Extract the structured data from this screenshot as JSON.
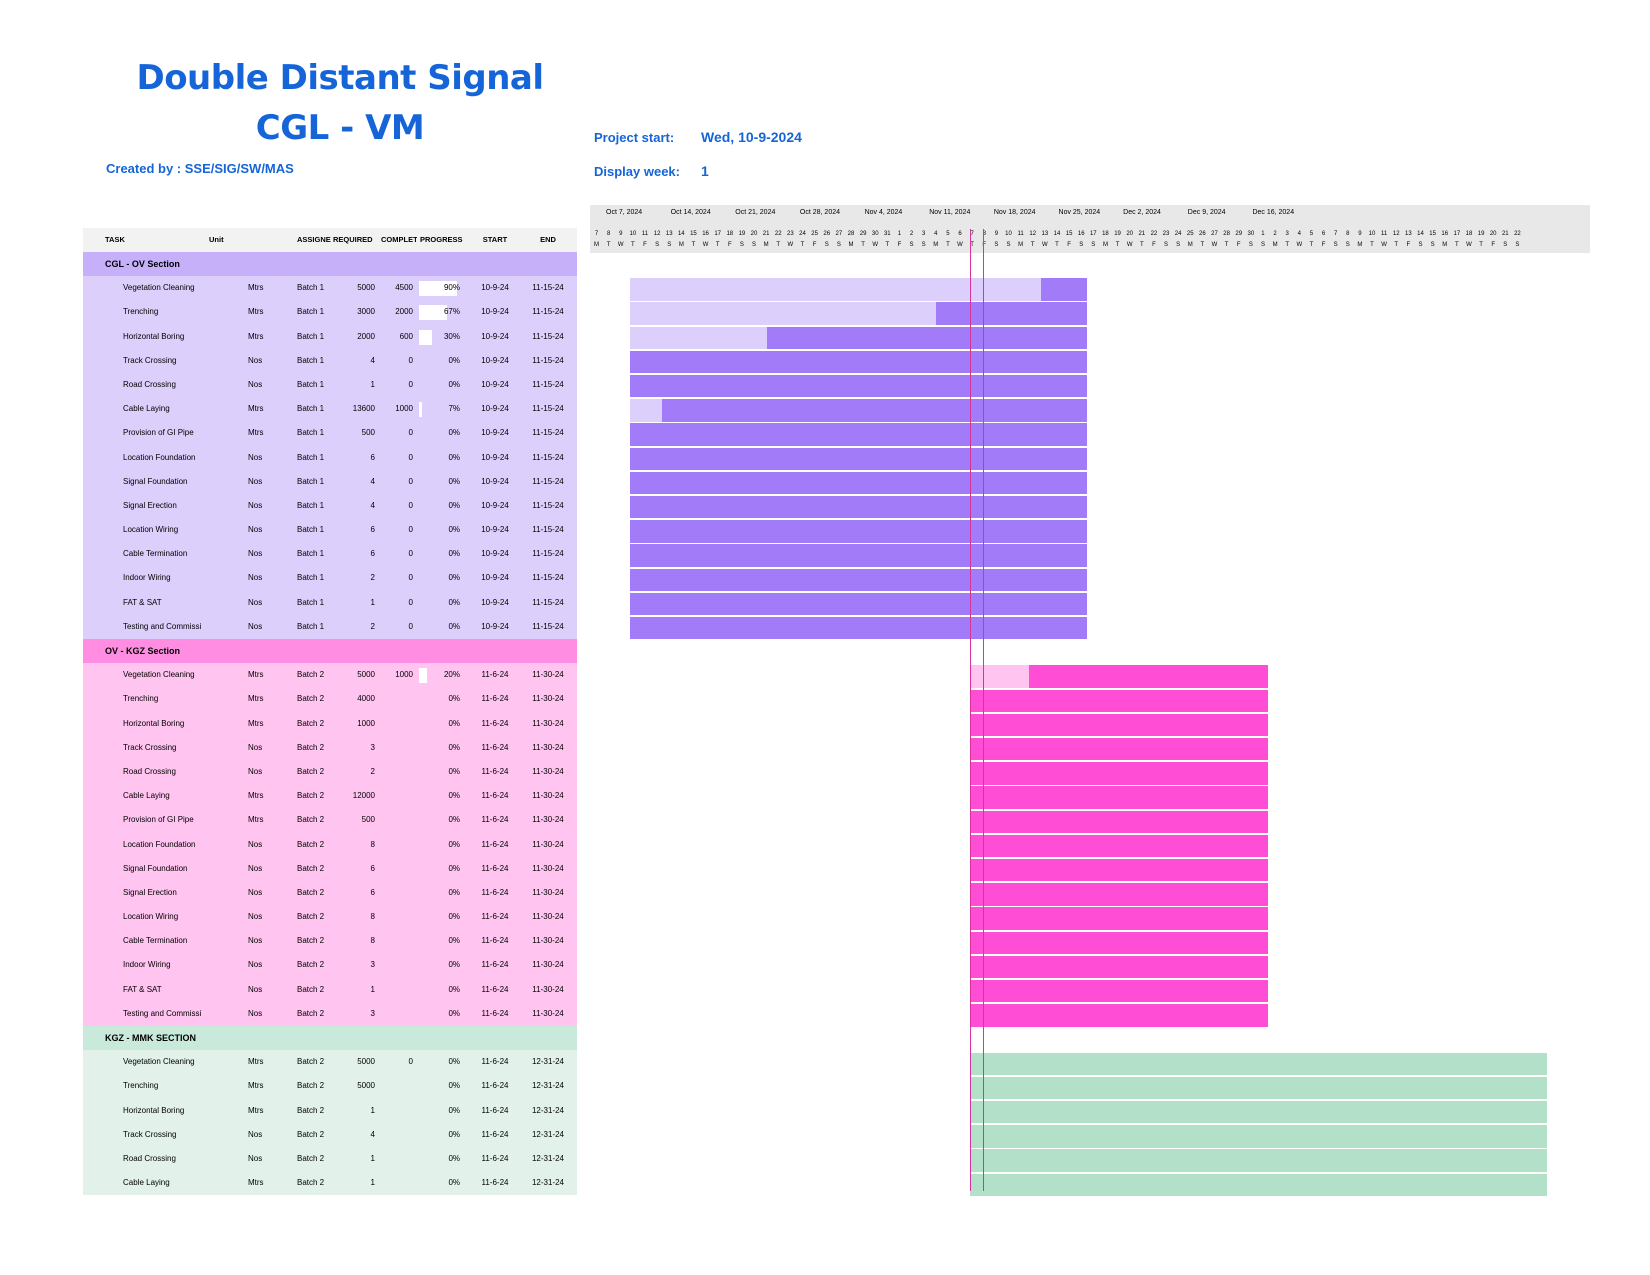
{
  "title_line1": "Double Distant Signal",
  "title_line2": "CGL - VM",
  "created_by": "Created by : SSE/SIG/SW/MAS",
  "project_start_label": "Project start:",
  "project_start_value": "Wed, 10-9-2024",
  "display_week_label": "Display week:",
  "display_week_value": "1",
  "table_headers": {
    "task": "TASK",
    "unit": "Unit",
    "assigned": "ASSIGNE",
    "required": "REQUIRED",
    "completed": "COMPLET",
    "progress": "PROGRESS",
    "start": "START",
    "end": "END"
  },
  "colors": {
    "purple_light": "#dccffb",
    "purple_dark": "#a27cf8",
    "purple_sec": "#c6b0fa",
    "pink_light": "#ffc4ef",
    "pink_dark": "#ff4dd6",
    "pink_sec": "#ff8ee3",
    "green_light": "#e2f2ea",
    "green_dark": "#b3e0c8",
    "green_sec": "#c9eadb",
    "today_line": "#d6339c",
    "title": "#1565d8"
  },
  "timeline": {
    "weeks": [
      "Oct 7, 2024",
      "Oct 14, 2024",
      "Oct 21, 2024",
      "Oct 28, 2024",
      "Nov 4, 2024",
      "Nov 11, 2024",
      "Nov 18, 2024",
      "Nov 25, 2024",
      "Dec 2, 2024",
      "Dec 9, 2024",
      "Dec 16, 2024"
    ],
    "day_numbers": [
      "7",
      "8",
      "9",
      "10",
      "11",
      "12",
      "13",
      "14",
      "15",
      "16",
      "17",
      "18",
      "19",
      "20",
      "21",
      "22",
      "23",
      "24",
      "25",
      "26",
      "27",
      "28",
      "29",
      "30",
      "31",
      "1",
      "2",
      "3",
      "4",
      "5",
      "6",
      "7",
      "8",
      "9",
      "10",
      "11",
      "12",
      "13",
      "14",
      "15",
      "16",
      "17",
      "18",
      "19",
      "20",
      "21",
      "22",
      "23",
      "24",
      "25",
      "26",
      "27",
      "28",
      "29",
      "30",
      "1",
      "2",
      "3",
      "4",
      "5",
      "6",
      "7",
      "8",
      "9",
      "10",
      "11",
      "12",
      "13",
      "14",
      "15",
      "16",
      "17",
      "18",
      "19",
      "20",
      "21",
      "22"
    ],
    "day_letters": [
      "M",
      "T",
      "W",
      "T",
      "F",
      "S",
      "S",
      "M",
      "T",
      "W",
      "T",
      "F",
      "S",
      "S",
      "M",
      "T",
      "W",
      "T",
      "F",
      "S",
      "S",
      "M",
      "T",
      "W",
      "T",
      "F",
      "S",
      "S",
      "M",
      "T",
      "W",
      "T",
      "F",
      "S",
      "S",
      "M",
      "T",
      "W",
      "T",
      "F",
      "S",
      "S",
      "M",
      "T",
      "W",
      "T",
      "F",
      "S",
      "S",
      "M",
      "T",
      "W",
      "T",
      "F",
      "S",
      "S",
      "M",
      "T",
      "W",
      "T",
      "F",
      "S",
      "S",
      "M",
      "T",
      "W",
      "T",
      "F",
      "S",
      "S",
      "M",
      "T",
      "W",
      "T",
      "F",
      "S",
      "S"
    ],
    "today_day_index": 31
  },
  "sections": [
    {
      "name": "CGL - OV Section",
      "color_key": "purple",
      "tasks": [
        {
          "task": "Vegetation Cleaning",
          "unit": "Mtrs",
          "assigned": "Batch 1",
          "required": "5000",
          "completed": "4500",
          "progress": "90%",
          "pct": 0.9,
          "start": "10-9-24",
          "end": "11-15-24",
          "start_day": 2,
          "end_day": 39
        },
        {
          "task": "Trenching",
          "unit": "Mtrs",
          "assigned": "Batch 1",
          "required": "3000",
          "completed": "2000",
          "progress": "67%",
          "pct": 0.67,
          "start": "10-9-24",
          "end": "11-15-24",
          "start_day": 2,
          "end_day": 39
        },
        {
          "task": "Horizontal Boring",
          "unit": "Mtrs",
          "assigned": "Batch 1",
          "required": "2000",
          "completed": "600",
          "progress": "30%",
          "pct": 0.3,
          "start": "10-9-24",
          "end": "11-15-24",
          "start_day": 2,
          "end_day": 39
        },
        {
          "task": "Track Crossing",
          "unit": "Nos",
          "assigned": "Batch 1",
          "required": "4",
          "completed": "0",
          "progress": "0%",
          "pct": 0,
          "start": "10-9-24",
          "end": "11-15-24",
          "start_day": 2,
          "end_day": 39
        },
        {
          "task": "Road Crossing",
          "unit": "Nos",
          "assigned": "Batch 1",
          "required": "1",
          "completed": "0",
          "progress": "0%",
          "pct": 0,
          "start": "10-9-24",
          "end": "11-15-24",
          "start_day": 2,
          "end_day": 39
        },
        {
          "task": "Cable Laying",
          "unit": "Mtrs",
          "assigned": "Batch 1",
          "required": "13600",
          "completed": "1000",
          "progress": "7%",
          "pct": 0.07,
          "start": "10-9-24",
          "end": "11-15-24",
          "start_day": 2,
          "end_day": 39
        },
        {
          "task": "Provision of GI Pipe",
          "unit": "Mtrs",
          "assigned": "Batch 1",
          "required": "500",
          "completed": "0",
          "progress": "0%",
          "pct": 0,
          "start": "10-9-24",
          "end": "11-15-24",
          "start_day": 2,
          "end_day": 39
        },
        {
          "task": "Location Foundation",
          "unit": "Nos",
          "assigned": "Batch 1",
          "required": "6",
          "completed": "0",
          "progress": "0%",
          "pct": 0,
          "start": "10-9-24",
          "end": "11-15-24",
          "start_day": 2,
          "end_day": 39
        },
        {
          "task": "Signal Foundation",
          "unit": "Nos",
          "assigned": "Batch 1",
          "required": "4",
          "completed": "0",
          "progress": "0%",
          "pct": 0,
          "start": "10-9-24",
          "end": "11-15-24",
          "start_day": 2,
          "end_day": 39
        },
        {
          "task": "Signal Erection",
          "unit": "Nos",
          "assigned": "Batch 1",
          "required": "4",
          "completed": "0",
          "progress": "0%",
          "pct": 0,
          "start": "10-9-24",
          "end": "11-15-24",
          "start_day": 2,
          "end_day": 39
        },
        {
          "task": "Location Wiring",
          "unit": "Nos",
          "assigned": "Batch 1",
          "required": "6",
          "completed": "0",
          "progress": "0%",
          "pct": 0,
          "start": "10-9-24",
          "end": "11-15-24",
          "start_day": 2,
          "end_day": 39
        },
        {
          "task": "Cable Termination",
          "unit": "Nos",
          "assigned": "Batch 1",
          "required": "6",
          "completed": "0",
          "progress": "0%",
          "pct": 0,
          "start": "10-9-24",
          "end": "11-15-24",
          "start_day": 2,
          "end_day": 39
        },
        {
          "task": "Indoor Wiring",
          "unit": "Nos",
          "assigned": "Batch 1",
          "required": "2",
          "completed": "0",
          "progress": "0%",
          "pct": 0,
          "start": "10-9-24",
          "end": "11-15-24",
          "start_day": 2,
          "end_day": 39
        },
        {
          "task": "FAT & SAT",
          "unit": "Nos",
          "assigned": "Batch 1",
          "required": "1",
          "completed": "0",
          "progress": "0%",
          "pct": 0,
          "start": "10-9-24",
          "end": "11-15-24",
          "start_day": 2,
          "end_day": 39
        },
        {
          "task": "Testing and Commissi",
          "unit": "Nos",
          "assigned": "Batch 1",
          "required": "2",
          "completed": "0",
          "progress": "0%",
          "pct": 0,
          "start": "10-9-24",
          "end": "11-15-24",
          "start_day": 2,
          "end_day": 39
        }
      ]
    },
    {
      "name": "OV - KGZ Section",
      "color_key": "pink",
      "tasks": [
        {
          "task": "Vegetation Cleaning",
          "unit": "Mtrs",
          "assigned": "Batch 2",
          "required": "5000",
          "completed": "1000",
          "progress": "20%",
          "pct": 0.2,
          "start": "11-6-24",
          "end": "11-30-24",
          "start_day": 30,
          "end_day": 54
        },
        {
          "task": "Trenching",
          "unit": "Mtrs",
          "assigned": "Batch 2",
          "required": "4000",
          "completed": "",
          "progress": "0%",
          "pct": 0,
          "start": "11-6-24",
          "end": "11-30-24",
          "start_day": 30,
          "end_day": 54
        },
        {
          "task": "Horizontal Boring",
          "unit": "Mtrs",
          "assigned": "Batch 2",
          "required": "1000",
          "completed": "",
          "progress": "0%",
          "pct": 0,
          "start": "11-6-24",
          "end": "11-30-24",
          "start_day": 30,
          "end_day": 54
        },
        {
          "task": "Track Crossing",
          "unit": "Nos",
          "assigned": "Batch 2",
          "required": "3",
          "completed": "",
          "progress": "0%",
          "pct": 0,
          "start": "11-6-24",
          "end": "11-30-24",
          "start_day": 30,
          "end_day": 54
        },
        {
          "task": "Road Crossing",
          "unit": "Nos",
          "assigned": "Batch 2",
          "required": "2",
          "completed": "",
          "progress": "0%",
          "pct": 0,
          "start": "11-6-24",
          "end": "11-30-24",
          "start_day": 30,
          "end_day": 54
        },
        {
          "task": "Cable Laying",
          "unit": "Mtrs",
          "assigned": "Batch 2",
          "required": "12000",
          "completed": "",
          "progress": "0%",
          "pct": 0,
          "start": "11-6-24",
          "end": "11-30-24",
          "start_day": 30,
          "end_day": 54
        },
        {
          "task": "Provision of GI Pipe",
          "unit": "Mtrs",
          "assigned": "Batch 2",
          "required": "500",
          "completed": "",
          "progress": "0%",
          "pct": 0,
          "start": "11-6-24",
          "end": "11-30-24",
          "start_day": 30,
          "end_day": 54
        },
        {
          "task": "Location Foundation",
          "unit": "Nos",
          "assigned": "Batch 2",
          "required": "8",
          "completed": "",
          "progress": "0%",
          "pct": 0,
          "start": "11-6-24",
          "end": "11-30-24",
          "start_day": 30,
          "end_day": 54
        },
        {
          "task": "Signal Foundation",
          "unit": "Nos",
          "assigned": "Batch 2",
          "required": "6",
          "completed": "",
          "progress": "0%",
          "pct": 0,
          "start": "11-6-24",
          "end": "11-30-24",
          "start_day": 30,
          "end_day": 54
        },
        {
          "task": "Signal Erection",
          "unit": "Nos",
          "assigned": "Batch 2",
          "required": "6",
          "completed": "",
          "progress": "0%",
          "pct": 0,
          "start": "11-6-24",
          "end": "11-30-24",
          "start_day": 30,
          "end_day": 54
        },
        {
          "task": "Location Wiring",
          "unit": "Nos",
          "assigned": "Batch 2",
          "required": "8",
          "completed": "",
          "progress": "0%",
          "pct": 0,
          "start": "11-6-24",
          "end": "11-30-24",
          "start_day": 30,
          "end_day": 54
        },
        {
          "task": "Cable Termination",
          "unit": "Nos",
          "assigned": "Batch 2",
          "required": "8",
          "completed": "",
          "progress": "0%",
          "pct": 0,
          "start": "11-6-24",
          "end": "11-30-24",
          "start_day": 30,
          "end_day": 54
        },
        {
          "task": "Indoor Wiring",
          "unit": "Nos",
          "assigned": "Batch 2",
          "required": "3",
          "completed": "",
          "progress": "0%",
          "pct": 0,
          "start": "11-6-24",
          "end": "11-30-24",
          "start_day": 30,
          "end_day": 54
        },
        {
          "task": "FAT & SAT",
          "unit": "Nos",
          "assigned": "Batch 2",
          "required": "1",
          "completed": "",
          "progress": "0%",
          "pct": 0,
          "start": "11-6-24",
          "end": "11-30-24",
          "start_day": 30,
          "end_day": 54
        },
        {
          "task": "Testing and Commissi",
          "unit": "Nos",
          "assigned": "Batch 2",
          "required": "3",
          "completed": "",
          "progress": "0%",
          "pct": 0,
          "start": "11-6-24",
          "end": "11-30-24",
          "start_day": 30,
          "end_day": 54
        }
      ]
    },
    {
      "name": "KGZ - MMK SECTION",
      "color_key": "green",
      "tasks": [
        {
          "task": "Vegetation Cleaning",
          "unit": "Mtrs",
          "assigned": "Batch 2",
          "required": "5000",
          "completed": "0",
          "progress": "0%",
          "pct": 0,
          "start": "11-6-24",
          "end": "12-31-24",
          "start_day": 30,
          "end_day": 77
        },
        {
          "task": "Trenching",
          "unit": "Mtrs",
          "assigned": "Batch 2",
          "required": "5000",
          "completed": "",
          "progress": "0%",
          "pct": 0,
          "start": "11-6-24",
          "end": "12-31-24",
          "start_day": 30,
          "end_day": 77
        },
        {
          "task": "Horizontal Boring",
          "unit": "Mtrs",
          "assigned": "Batch 2",
          "required": "1",
          "completed": "",
          "progress": "0%",
          "pct": 0,
          "start": "11-6-24",
          "end": "12-31-24",
          "start_day": 30,
          "end_day": 77
        },
        {
          "task": "Track Crossing",
          "unit": "Nos",
          "assigned": "Batch 2",
          "required": "4",
          "completed": "",
          "progress": "0%",
          "pct": 0,
          "start": "11-6-24",
          "end": "12-31-24",
          "start_day": 30,
          "end_day": 77
        },
        {
          "task": "Road Crossing",
          "unit": "Nos",
          "assigned": "Batch 2",
          "required": "1",
          "completed": "",
          "progress": "0%",
          "pct": 0,
          "start": "11-6-24",
          "end": "12-31-24",
          "start_day": 30,
          "end_day": 77
        },
        {
          "task": "Cable Laying",
          "unit": "Mtrs",
          "assigned": "Batch 2",
          "required": "1",
          "completed": "",
          "progress": "0%",
          "pct": 0,
          "start": "11-6-24",
          "end": "12-31-24",
          "start_day": 30,
          "end_day": 77
        }
      ]
    }
  ]
}
